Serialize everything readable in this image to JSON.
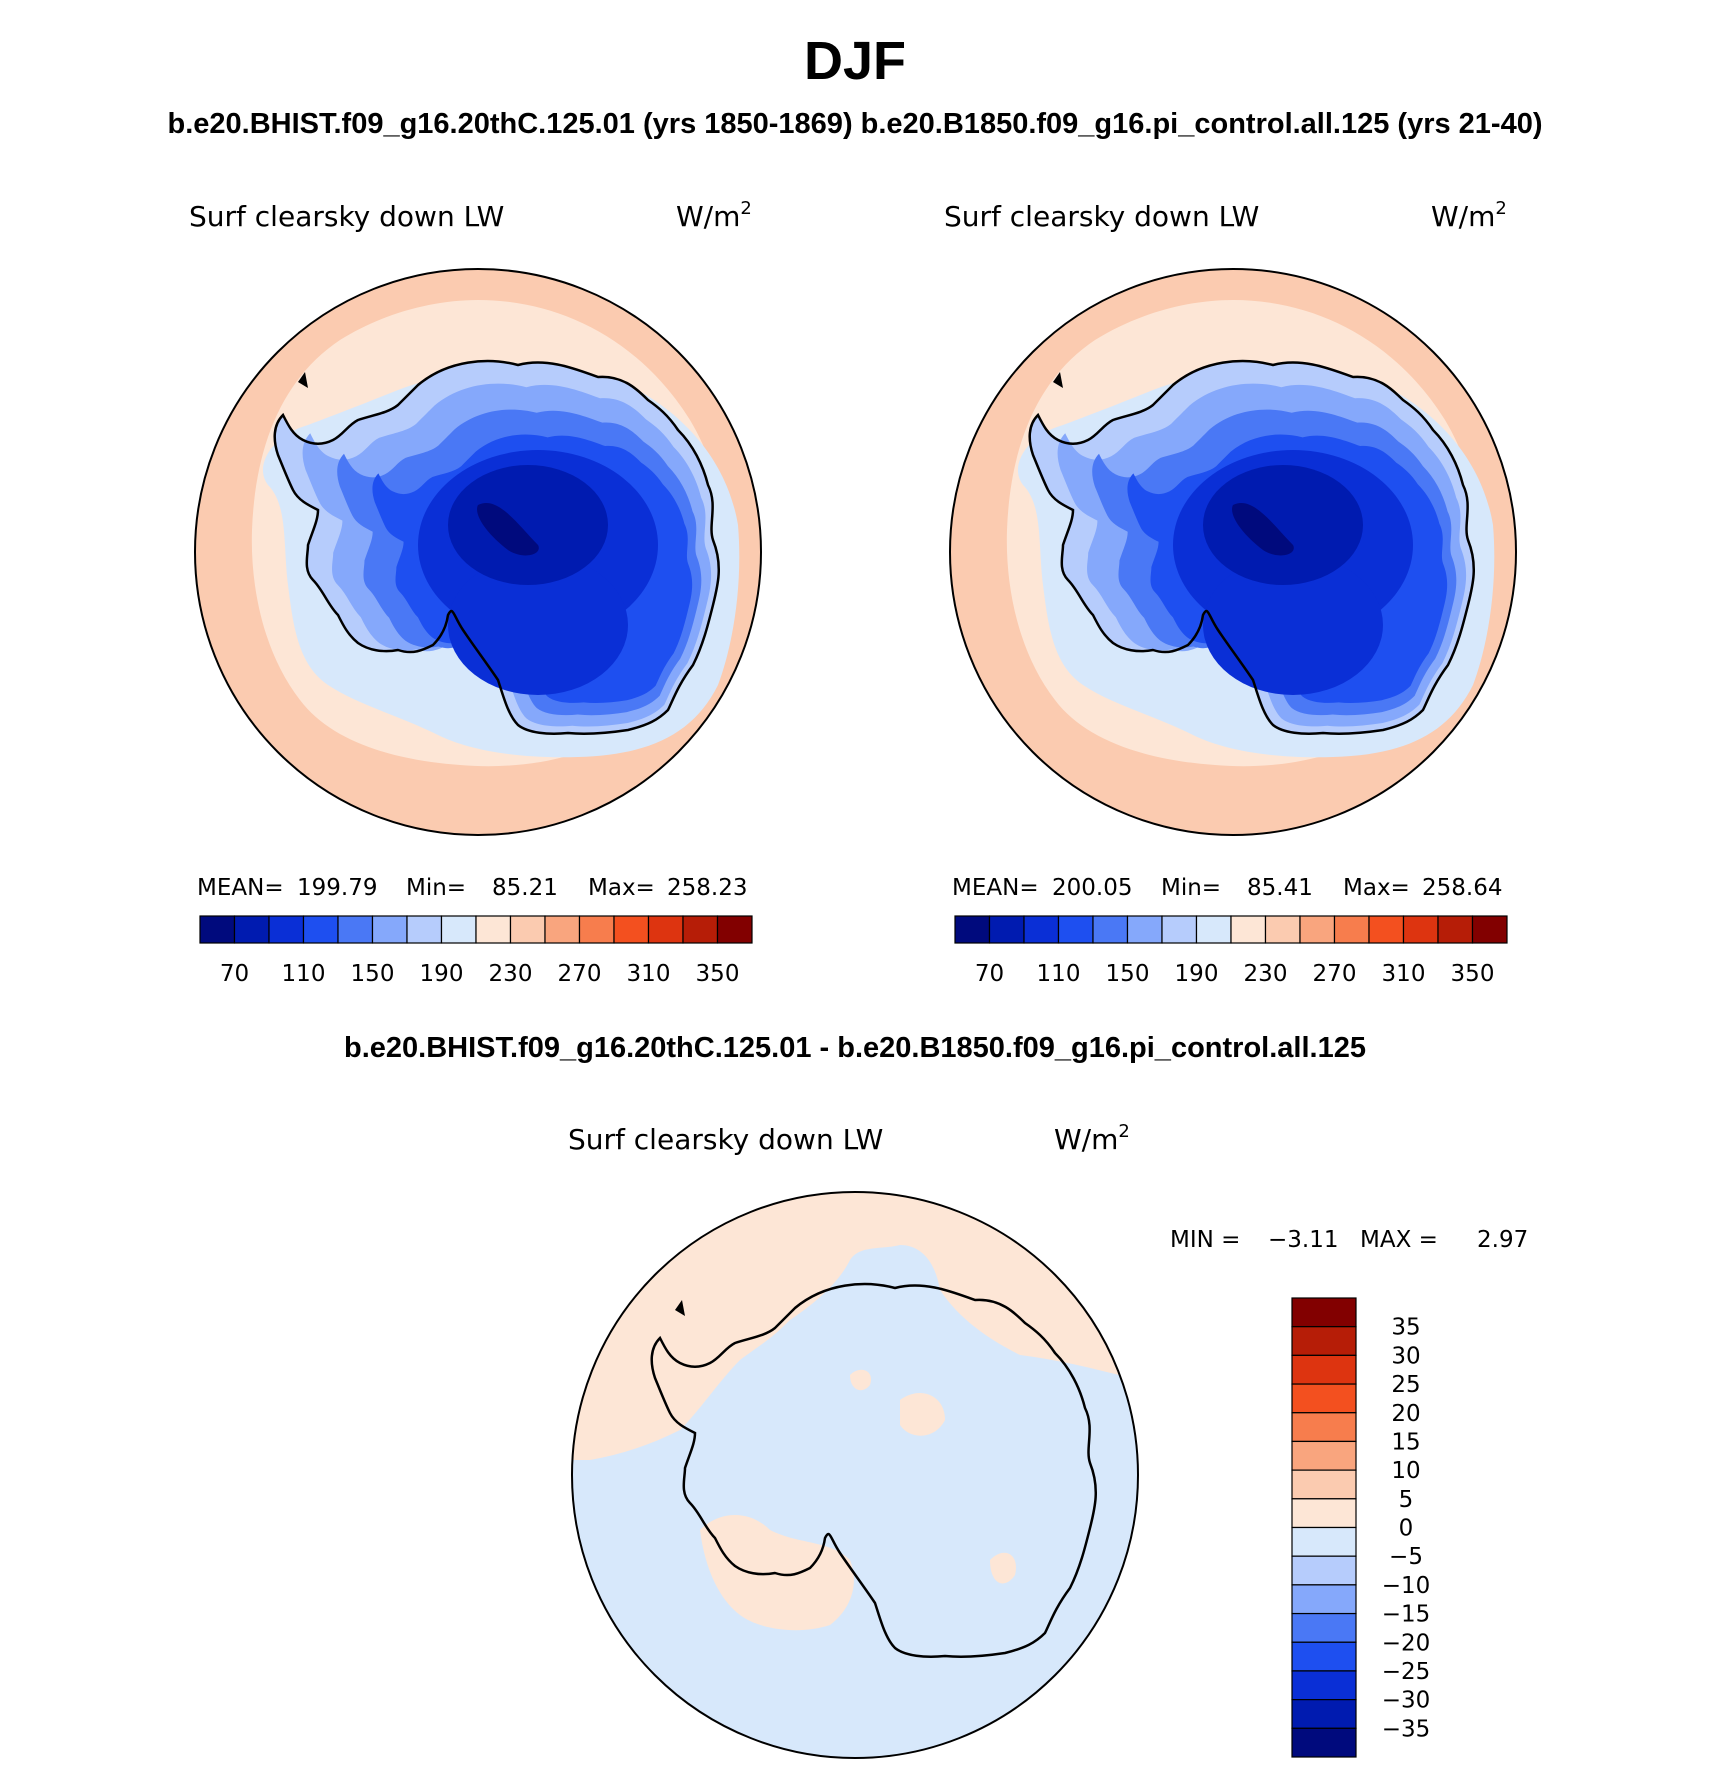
{
  "title": "DJF",
  "run_title": "b.e20.BHIST.f09_g16.20thC.125.01 (yrs 1850-1869)  b.e20.B1850.f09_g16.pi_control.all.125 (yrs 21-40)",
  "diff_title": "b.e20.BHIST.f09_g16.20thC.125.01 - b.e20.B1850.f09_g16.pi_control.all.125",
  "colors": {
    "abs_scale": [
      "#000a7d",
      "#001bb0",
      "#0a2fd6",
      "#1e4ff0",
      "#4a78f5",
      "#85a8fb",
      "#b6ccfc",
      "#d7e8fb",
      "#fde6d6",
      "#fbcbb0",
      "#f9a57e",
      "#f77d4d",
      "#f3501f",
      "#dd3410",
      "#b61d07",
      "#820000"
    ],
    "diff_scale": [
      "#000a7d",
      "#001bb0",
      "#0a2fd6",
      "#1e4ff0",
      "#4a78f5",
      "#85a8fb",
      "#b6ccfc",
      "#d7e8fb",
      "#fde6d6",
      "#fbcbb0",
      "#f9a57e",
      "#f77d4d",
      "#f3501f",
      "#dd3410",
      "#b61d07",
      "#820000"
    ]
  },
  "panels": [
    {
      "field_label": "Surf clearsky down LW",
      "units": "W/m",
      "units_sup": "2",
      "mean_label": "MEAN=",
      "mean": "199.79",
      "min_label": "Min=",
      "min": "85.21",
      "max_label": "Max=",
      "max": "258.23"
    },
    {
      "field_label": "Surf clearsky down LW",
      "units": "W/m",
      "units_sup": "2",
      "mean_label": "MEAN=",
      "mean": "200.05",
      "min_label": "Min=",
      "min": "85.41",
      "max_label": "Max=",
      "max": "258.64"
    }
  ],
  "abs_colorbar_ticks": [
    "70",
    "110",
    "150",
    "190",
    "230",
    "270",
    "310",
    "350"
  ],
  "diff_panel": {
    "field_label": "Surf clearsky down LW",
    "units": "W/m",
    "units_sup": "2",
    "min_label": "MIN =",
    "min": "−3.11",
    "max_label": "MAX =",
    "max": "2.97"
  },
  "diff_colorbar_ticks": [
    "35",
    "30",
    "25",
    "20",
    "15",
    "10",
    "5",
    "0",
    "−5",
    "−10",
    "−15",
    "−20",
    "−25",
    "−30",
    "−35"
  ]
}
